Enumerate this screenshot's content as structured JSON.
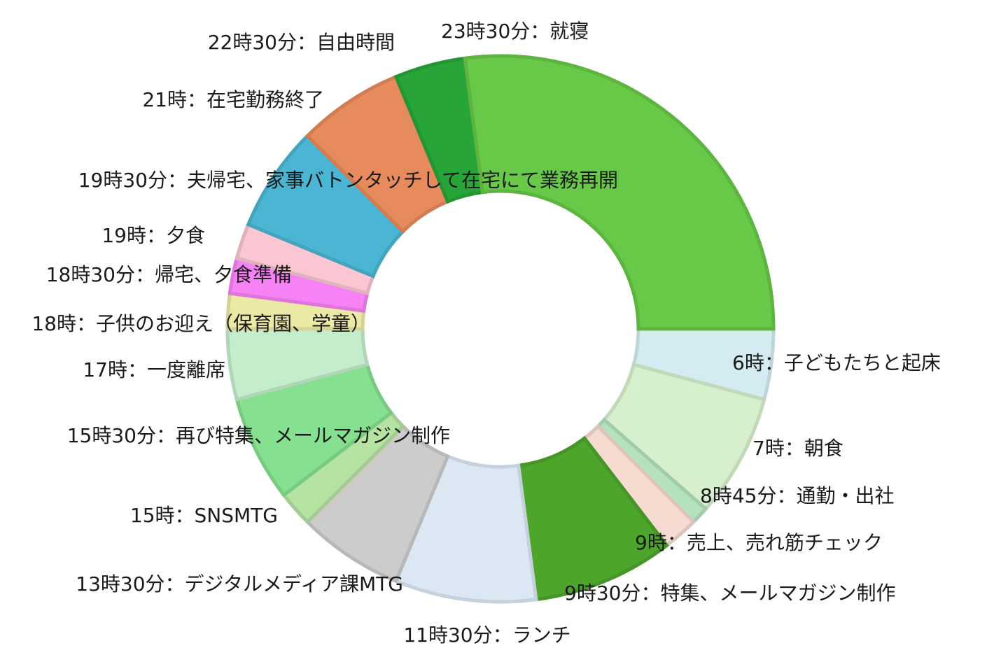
{
  "chart_data": {
    "type": "donut",
    "title": "",
    "unit": "hours",
    "direction": "clockwise from 3 o'clock",
    "slices": [
      {
        "label": "6時：子どもたちと起床",
        "value": 1,
        "color": "#d4ebf1"
      },
      {
        "label": "7時：朝食",
        "value": 1.75,
        "color": "#d6f0cd"
      },
      {
        "label": "8時45分：通勤・出社",
        "value": 0.25,
        "color": "#b3e2bd"
      },
      {
        "label": "9時：売上、売れ筋チェック",
        "value": 0.5,
        "color": "#f6dbd1"
      },
      {
        "label": "9時30分：特集、メールマガジン制作",
        "value": 2,
        "color": "#4ea52c"
      },
      {
        "label": "11時30分：ランチ",
        "value": 2,
        "color": "#dbe8f4"
      },
      {
        "label": "13時30分：デジタルメディア課MTG",
        "value": 1.5,
        "color": "#cccccc"
      },
      {
        "label": "15時：SNSMTG",
        "value": 0.5,
        "color": "#b4e3a2"
      },
      {
        "label": "15時30分：再び特集、メールマガジン制作",
        "value": 1.5,
        "color": "#85e08f"
      },
      {
        "label": "17時：一度離席",
        "value": 1,
        "color": "#c3edcb"
      },
      {
        "label": "18時：子供のお迎え（保育園、学童）",
        "value": 0.5,
        "color": "#ebe9a4"
      },
      {
        "label": "18時30分：帰宅、夕食準備",
        "value": 0.5,
        "color": "#f682f6"
      },
      {
        "label": "19時：夕食",
        "value": 0.5,
        "color": "#f9c6d2"
      },
      {
        "label": "19時30分：夫帰宅、家事バトンタッチして在宅にて業務再開",
        "value": 1.5,
        "color": "#4bb6d3"
      },
      {
        "label": "21時：在宅勤務終了",
        "value": 1.5,
        "color": "#e88b5c"
      },
      {
        "label": "22時30分：自由時間",
        "value": 1,
        "color": "#28a538"
      },
      {
        "label": "23時30分：就寝",
        "value": 6.5,
        "color": "#67c947"
      }
    ]
  }
}
